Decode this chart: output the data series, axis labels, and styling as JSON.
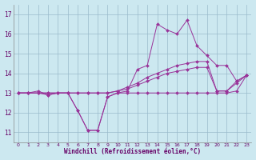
{
  "xlabel": "Windchill (Refroidissement éolien,°C)",
  "bg_color": "#cce8f0",
  "line_color": "#993399",
  "grid_color": "#99bbcc",
  "xlim": [
    -0.5,
    23.5
  ],
  "ylim": [
    10.5,
    17.5
  ],
  "yticks": [
    11,
    12,
    13,
    14,
    15,
    16,
    17
  ],
  "xticks": [
    0,
    1,
    2,
    3,
    4,
    5,
    6,
    7,
    8,
    9,
    10,
    11,
    12,
    13,
    14,
    15,
    16,
    17,
    18,
    19,
    20,
    21,
    22,
    23
  ],
  "lines": [
    {
      "x": [
        0,
        1,
        2,
        3,
        4,
        5,
        6,
        7,
        8,
        9,
        10,
        11,
        12,
        13,
        14,
        15,
        16,
        17,
        18,
        19,
        20,
        21,
        22,
        23
      ],
      "y": [
        13.0,
        13.0,
        13.1,
        12.9,
        13.0,
        13.0,
        12.1,
        11.1,
        11.1,
        12.8,
        13.0,
        13.0,
        13.0,
        13.0,
        13.0,
        13.0,
        13.0,
        13.0,
        13.0,
        13.0,
        13.0,
        13.0,
        13.1,
        13.9
      ]
    },
    {
      "x": [
        0,
        1,
        2,
        3,
        4,
        5,
        6,
        7,
        8,
        9,
        10,
        11,
        12,
        13,
        14,
        15,
        16,
        17,
        18,
        19,
        20,
        21,
        22,
        23
      ],
      "y": [
        13.0,
        13.0,
        13.0,
        13.0,
        13.0,
        13.0,
        13.0,
        13.0,
        13.0,
        13.0,
        13.1,
        13.2,
        13.4,
        13.6,
        13.8,
        14.0,
        14.1,
        14.2,
        14.3,
        14.3,
        13.1,
        13.1,
        13.5,
        13.9
      ]
    },
    {
      "x": [
        0,
        1,
        2,
        3,
        4,
        5,
        6,
        7,
        8,
        9,
        10,
        11,
        12,
        13,
        14,
        15,
        16,
        17,
        18,
        19,
        20,
        21,
        22,
        23
      ],
      "y": [
        13.0,
        13.0,
        13.0,
        13.0,
        13.0,
        13.0,
        13.0,
        13.0,
        13.0,
        13.0,
        13.1,
        13.3,
        13.5,
        13.8,
        14.0,
        14.2,
        14.4,
        14.5,
        14.6,
        14.6,
        13.1,
        13.1,
        13.6,
        13.9
      ]
    },
    {
      "x": [
        0,
        1,
        2,
        3,
        4,
        5,
        6,
        7,
        8,
        9,
        10,
        11,
        12,
        13,
        14,
        15,
        16,
        17,
        18,
        19,
        20,
        21,
        22,
        23
      ],
      "y": [
        13.0,
        13.0,
        13.0,
        12.9,
        13.0,
        13.0,
        12.1,
        11.1,
        11.1,
        12.8,
        13.0,
        13.1,
        14.2,
        14.4,
        16.5,
        16.2,
        16.0,
        16.7,
        15.4,
        14.9,
        14.4,
        14.4,
        13.6,
        13.9
      ]
    }
  ]
}
